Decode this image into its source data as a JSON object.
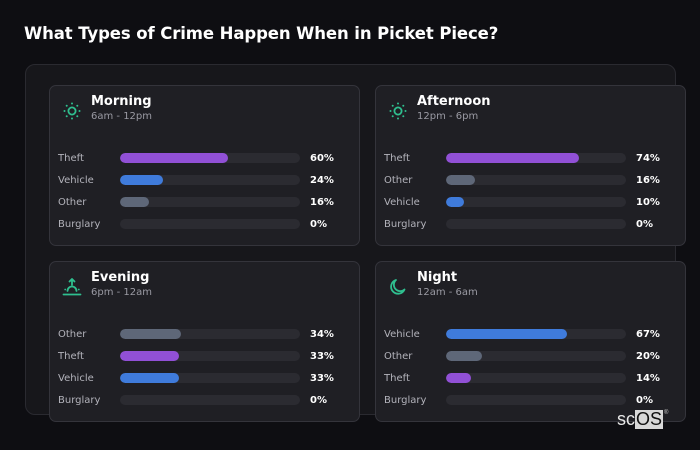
{
  "header": {
    "title": "What Types of Crime Happen When in Picket Piece?"
  },
  "colors": {
    "theft": "#9150d6",
    "vehicle": "#3f7bdb",
    "other": "#5e6778",
    "burglary": "#2b2b31",
    "icon_accent": "#2fbf8f"
  },
  "cards": [
    {
      "icon": "sun-icon",
      "title": "Morning",
      "subtitle": "6am - 12pm",
      "rows": [
        {
          "label": "Theft",
          "value": 60,
          "pct": "60%"
        },
        {
          "label": "Vehicle",
          "value": 24,
          "pct": "24%"
        },
        {
          "label": "Other",
          "value": 16,
          "pct": "16%"
        },
        {
          "label": "Burglary",
          "value": 0,
          "pct": "0%"
        }
      ]
    },
    {
      "icon": "sun-icon",
      "title": "Afternoon",
      "subtitle": "12pm - 6pm",
      "rows": [
        {
          "label": "Theft",
          "value": 74,
          "pct": "74%"
        },
        {
          "label": "Other",
          "value": 16,
          "pct": "16%"
        },
        {
          "label": "Vehicle",
          "value": 10,
          "pct": "10%"
        },
        {
          "label": "Burglary",
          "value": 0,
          "pct": "0%"
        }
      ]
    },
    {
      "icon": "sunset-icon",
      "title": "Evening",
      "subtitle": "6pm - 12am",
      "rows": [
        {
          "label": "Other",
          "value": 34,
          "pct": "34%"
        },
        {
          "label": "Theft",
          "value": 33,
          "pct": "33%"
        },
        {
          "label": "Vehicle",
          "value": 33,
          "pct": "33%"
        },
        {
          "label": "Burglary",
          "value": 0,
          "pct": "0%"
        }
      ]
    },
    {
      "icon": "moon-icon",
      "title": "Night",
      "subtitle": "12am - 6am",
      "rows": [
        {
          "label": "Vehicle",
          "value": 67,
          "pct": "67%"
        },
        {
          "label": "Other",
          "value": 20,
          "pct": "20%"
        },
        {
          "label": "Theft",
          "value": 14,
          "pct": "14%"
        },
        {
          "label": "Burglary",
          "value": 0,
          "pct": "0%"
        }
      ]
    }
  ],
  "logo": {
    "sc": "sc",
    "os": "OS",
    "reg": "®"
  },
  "chart_data": {
    "type": "bar",
    "orientation": "horizontal",
    "title": "What Types of Crime Happen When in Picket Piece?",
    "xlabel": "",
    "ylabel": "",
    "xlim": [
      0,
      100
    ],
    "unit": "%",
    "grid": false,
    "legend": null,
    "panels": [
      {
        "title": "Morning",
        "subtitle": "6am - 12pm",
        "categories": [
          "Theft",
          "Vehicle",
          "Other",
          "Burglary"
        ],
        "values": [
          60,
          24,
          16,
          0
        ]
      },
      {
        "title": "Afternoon",
        "subtitle": "12pm - 6pm",
        "categories": [
          "Theft",
          "Other",
          "Vehicle",
          "Burglary"
        ],
        "values": [
          74,
          16,
          10,
          0
        ]
      },
      {
        "title": "Evening",
        "subtitle": "6pm - 12am",
        "categories": [
          "Other",
          "Theft",
          "Vehicle",
          "Burglary"
        ],
        "values": [
          34,
          33,
          33,
          0
        ]
      },
      {
        "title": "Night",
        "subtitle": "12am - 6am",
        "categories": [
          "Vehicle",
          "Other",
          "Theft",
          "Burglary"
        ],
        "values": [
          67,
          20,
          14,
          0
        ]
      }
    ],
    "series_colors": {
      "Theft": "#9150d6",
      "Vehicle": "#3f7bdb",
      "Other": "#5e6778",
      "Burglary": "#2b2b31"
    }
  }
}
